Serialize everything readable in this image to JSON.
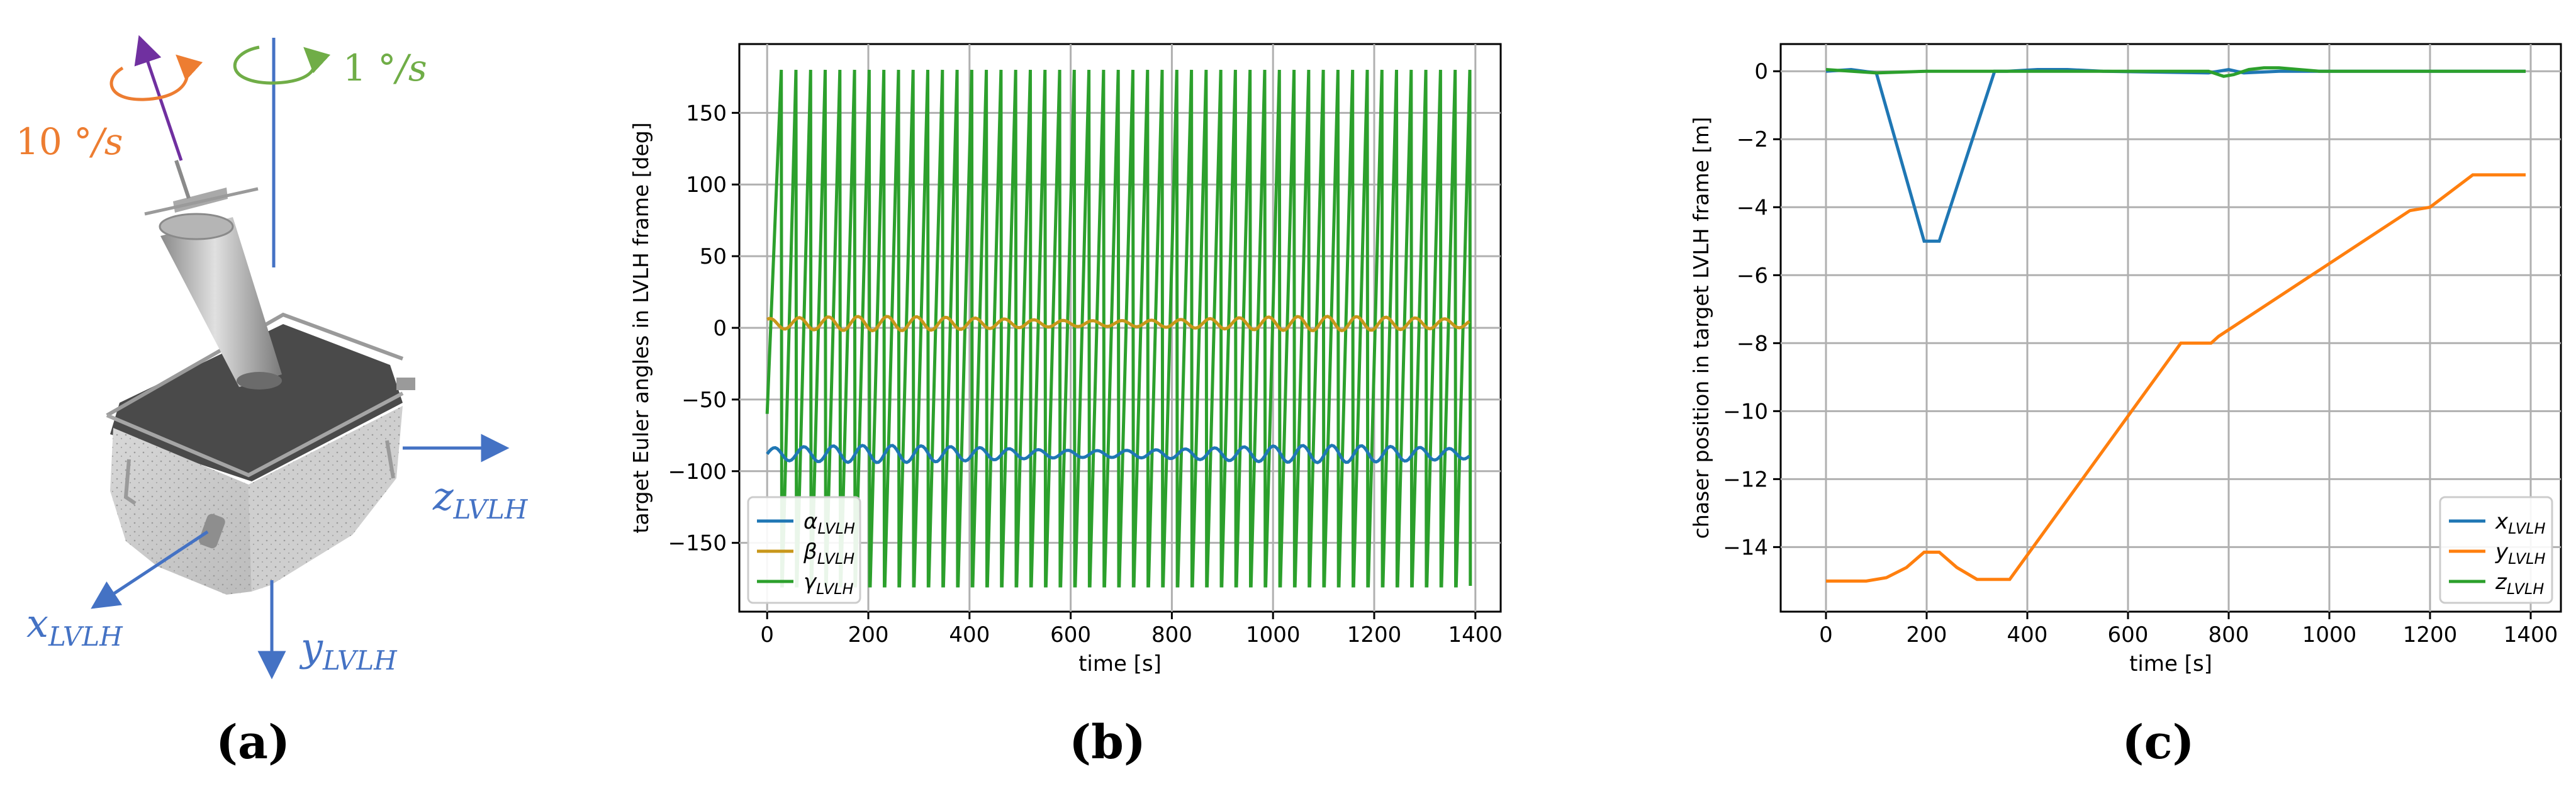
{
  "panels": {
    "a": {
      "label": "(a)",
      "rate_chaser": {
        "value": "10",
        "unit": "°/s"
      },
      "rate_target": {
        "value": "1",
        "unit": "°/s"
      },
      "axes": {
        "x": {
          "base": "x",
          "sub": "LVLH"
        },
        "y": {
          "base": "y",
          "sub": "LVLH"
        },
        "z": {
          "base": "z",
          "sub": "LVLH"
        }
      }
    },
    "b": {
      "label": "(b)"
    },
    "c": {
      "label": "(c)"
    }
  },
  "colors": {
    "blue": "#1f77b4",
    "orange": "#ff7f0e",
    "green": "#2ca02c",
    "gold": "#c8971a",
    "axis_blue": "#4472c4",
    "rate_orange": "#ed7d31",
    "rate_green": "#70ad47",
    "purple": "#7030a0"
  },
  "chart_data": [
    {
      "id": "b",
      "type": "line",
      "title": "",
      "xlabel": "time [s]",
      "ylabel": "target Euler angles in LVLH frame [deg]",
      "xlim": [
        -55,
        1450
      ],
      "ylim": [
        -198,
        198
      ],
      "xticks": [
        0,
        200,
        400,
        600,
        800,
        1000,
        1200,
        1400
      ],
      "yticks": [
        -150,
        -100,
        -50,
        0,
        50,
        100,
        150
      ],
      "grid": true,
      "legend": "bottom-left",
      "series": [
        {
          "name": "α",
          "sub": "LVLH",
          "color": "#1f77b4",
          "description": "oscillates near -88 deg with small amplitude",
          "mean": -88,
          "amplitude": 6
        },
        {
          "name": "β",
          "sub": "LVLH",
          "color": "#c8971a",
          "description": "oscillates near 3 deg with small amplitude",
          "mean": 3,
          "amplitude": 5
        },
        {
          "name": "γ",
          "sub": "LVLH",
          "color": "#2ca02c",
          "description": "sawtooth wrapping between -180 and 180 deg",
          "min": -180,
          "max": 180,
          "wraps": 48,
          "x_end": 1390
        }
      ]
    },
    {
      "id": "c",
      "type": "line",
      "title": "",
      "xlabel": "time [s]",
      "ylabel": "chaser position in target LVLH frame [m]",
      "xlim": [
        -90,
        1460
      ],
      "ylim": [
        -15.9,
        0.8
      ],
      "xticks": [
        0,
        200,
        400,
        600,
        800,
        1000,
        1200,
        1400
      ],
      "yticks": [
        -14,
        -12,
        -10,
        -8,
        -6,
        -4,
        -2,
        0
      ],
      "grid": true,
      "legend": "bottom-right",
      "series": [
        {
          "name": "x",
          "sub": "LVLH",
          "color": "#1f77b4",
          "x": [
            0,
            50,
            100,
            195,
            225,
            335,
            360,
            420,
            480,
            550,
            760,
            800,
            830,
            900,
            1000,
            1390
          ],
          "y": [
            0,
            0.05,
            -0.05,
            -5.0,
            -5.0,
            0,
            0,
            0.05,
            0.05,
            0,
            -0.05,
            0.05,
            -0.05,
            0,
            0,
            0
          ]
        },
        {
          "name": "y",
          "sub": "LVLH",
          "color": "#ff7f0e",
          "x": [
            0,
            80,
            120,
            160,
            195,
            225,
            260,
            300,
            365,
            705,
            765,
            780,
            1160,
            1200,
            1285,
            1390
          ],
          "y": [
            -15.0,
            -15.0,
            -14.9,
            -14.6,
            -14.15,
            -14.15,
            -14.6,
            -14.95,
            -14.95,
            -8.0,
            -8.0,
            -7.8,
            -4.1,
            -4.0,
            -3.05,
            -3.05
          ]
        },
        {
          "name": "z",
          "sub": "LVLH",
          "color": "#2ca02c",
          "x": [
            0,
            100,
            200,
            400,
            600,
            760,
            790,
            810,
            840,
            870,
            900,
            940,
            980,
            1000,
            1390
          ],
          "y": [
            0.05,
            -0.05,
            0,
            0,
            0,
            0,
            -0.15,
            -0.1,
            0.05,
            0.1,
            0.1,
            0.05,
            0,
            0,
            0
          ]
        }
      ]
    }
  ]
}
